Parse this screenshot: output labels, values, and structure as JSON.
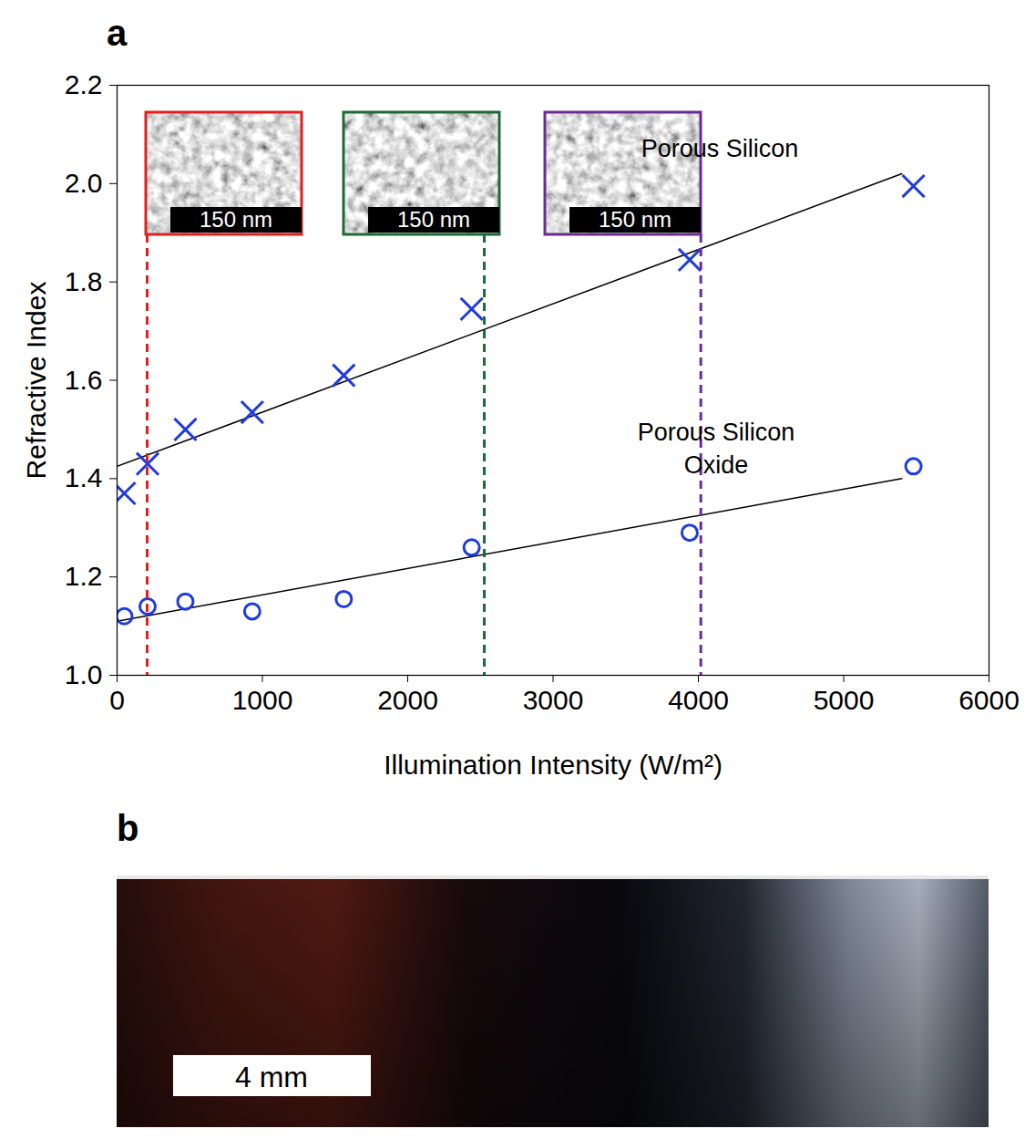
{
  "chart_data": {
    "type": "scatter",
    "panel_label": "a",
    "x_label": "Illumination Intensity (W/m²)",
    "y_label": "Refractive Index",
    "xlim": [
      0,
      6000
    ],
    "xticks": [
      0,
      1000,
      2000,
      3000,
      4000,
      5000,
      6000
    ],
    "ylim": [
      1.0,
      2.2
    ],
    "yticks": [
      {
        "value": 1,
        "label": "1.0"
      },
      1.2,
      1.4,
      1.6,
      1.8,
      {
        "value": 2,
        "label": "2.0"
      },
      2.2
    ],
    "series": [
      {
        "name": "Porous Silicon",
        "color": "#1f3be0",
        "marker": "x",
        "x": [
          50,
          210,
          470,
          930,
          1560,
          2440,
          3940,
          5480
        ],
        "values": [
          1.37,
          1.43,
          1.5,
          1.535,
          1.61,
          1.745,
          1.845,
          1.995
        ],
        "fit_x": [
          0,
          5400
        ],
        "fit_values": [
          1.425,
          2.02
        ]
      },
      {
        "name": "Porous Silicon Oxide",
        "color": "#1f3be0",
        "marker": "circle",
        "x": [
          50,
          210,
          470,
          930,
          1560,
          2440,
          3940,
          5480
        ],
        "values": [
          1.12,
          1.14,
          1.15,
          1.13,
          1.155,
          1.26,
          1.29,
          1.425
        ],
        "fit_x": [
          0,
          5400
        ],
        "fit_values": [
          1.11,
          1.4
        ]
      }
    ],
    "insets": [
      {
        "x": 210,
        "color": "#e02020",
        "label": "150 nm"
      },
      {
        "x": 2530,
        "color": "#1a6b35",
        "label": "150 nm"
      },
      {
        "x": 4020,
        "color": "#6a2c91",
        "label": "150 nm"
      }
    ]
  },
  "photo": {
    "panel_label": "b",
    "scale_bar": "4 mm"
  }
}
